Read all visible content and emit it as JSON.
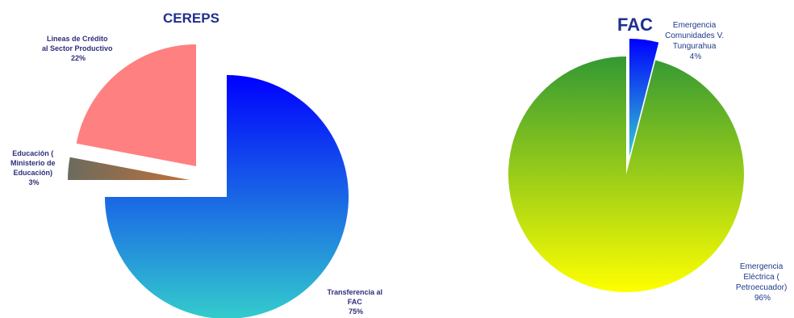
{
  "chart_data": [
    {
      "type": "pie",
      "title": "CEREPS",
      "slices": [
        {
          "label_lines": [
            "Transferencia al",
            "FAC",
            "75%"
          ],
          "value": 75,
          "gradient": [
            "#0000ff",
            "#33cccc"
          ]
        },
        {
          "label_lines": [
            "Educación (",
            "Ministerio de",
            "Educación)",
            "3%"
          ],
          "value": 3,
          "gradient": [
            "#6b6b5e",
            "#c0703a"
          ]
        },
        {
          "label_lines": [
            "Lineas de Crédito",
            "al Sector Productivo",
            "22%"
          ],
          "value": 22,
          "gradient": [
            "#ff8080",
            "#ff8080"
          ]
        }
      ]
    },
    {
      "type": "pie",
      "title": "FAC",
      "slices": [
        {
          "label_lines": [
            "Emergencia",
            "Comunidades V.",
            "Tungurahua",
            "4%"
          ],
          "value": 4,
          "gradient": [
            "#0000ff",
            "#33cccc"
          ]
        },
        {
          "label_lines": [
            "Emergencia",
            "Eléctrica (",
            "Petroecuador)",
            "96%"
          ],
          "value": 96,
          "gradient": [
            "#339933",
            "#ffff00"
          ]
        }
      ]
    }
  ]
}
